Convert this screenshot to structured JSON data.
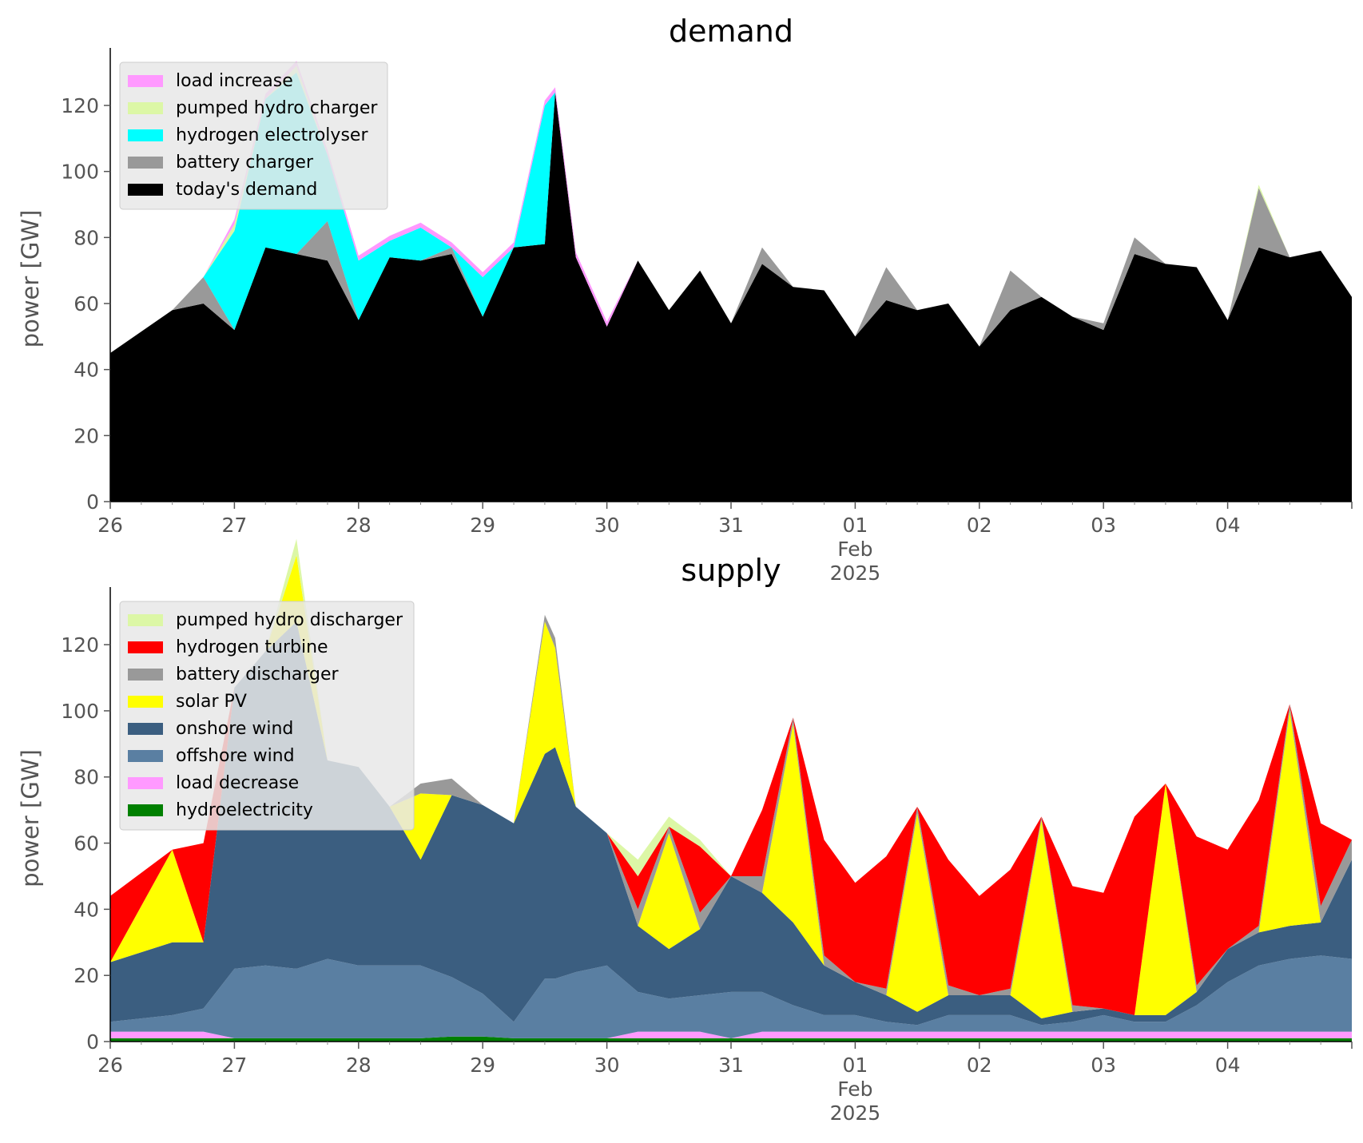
{
  "chart_data": [
    {
      "type": "area",
      "title": "demand",
      "ylabel": "power [GW]",
      "xlabel": "",
      "ylim": [
        0,
        135
      ],
      "yticks": [
        0,
        20,
        40,
        60,
        80,
        100,
        120
      ],
      "x_range": [
        "2025-01-26T00:00",
        "2025-02-05T00:00"
      ],
      "x": [
        "2025-01-26T00:00",
        "2025-01-26T12:00",
        "2025-01-26T18:00",
        "2025-01-27T00:00",
        "2025-01-27T06:00",
        "2025-01-27T12:00",
        "2025-01-27T18:00",
        "2025-01-28T00:00",
        "2025-01-28T06:00",
        "2025-01-28T12:00",
        "2025-01-28T18:00",
        "2025-01-29T00:00",
        "2025-01-29T06:00",
        "2025-01-29T12:00",
        "2025-01-29T14:00",
        "2025-01-29T18:00",
        "2025-01-30T00:00",
        "2025-01-30T06:00",
        "2025-01-30T12:00",
        "2025-01-30T18:00",
        "2025-01-31T00:00",
        "2025-01-31T06:00",
        "2025-01-31T12:00",
        "2025-01-31T18:00",
        "2025-02-01T00:00",
        "2025-02-01T06:00",
        "2025-02-01T12:00",
        "2025-02-01T18:00",
        "2025-02-02T00:00",
        "2025-02-02T06:00",
        "2025-02-02T12:00",
        "2025-02-02T18:00",
        "2025-02-03T00:00",
        "2025-02-03T06:00",
        "2025-02-03T12:00",
        "2025-02-03T18:00",
        "2025-02-04T00:00",
        "2025-02-04T06:00",
        "2025-02-04T12:00",
        "2025-02-04T18:00",
        "2025-02-05T00:00"
      ],
      "x_tick_labels": [
        "26",
        "27",
        "28",
        "29",
        "30",
        "31",
        "01",
        "02",
        "03",
        "04"
      ],
      "x_tick_sublabels": {
        "month": "Feb",
        "year": "2025"
      },
      "legend": "upper-left",
      "series": [
        {
          "name": "today's demand",
          "color": "#000000",
          "values": [
            45,
            58,
            60,
            52,
            77,
            75,
            73,
            55,
            74,
            73,
            75,
            56,
            77,
            78,
            124,
            74,
            53,
            73,
            58,
            70,
            54,
            72,
            65,
            64,
            50,
            61,
            58,
            60,
            47,
            58,
            62,
            56,
            52,
            75,
            72,
            71,
            55,
            77,
            74,
            76,
            62
          ]
        },
        {
          "name": "battery charger",
          "color": "#999999",
          "values": [
            0,
            0,
            8,
            0,
            0,
            0,
            12,
            0,
            0,
            0,
            2,
            0,
            0,
            0,
            0,
            0,
            0,
            0,
            0,
            0,
            0,
            5,
            0,
            0,
            0,
            10,
            0,
            0,
            0,
            12,
            0,
            0,
            2,
            5,
            0,
            0,
            0,
            18,
            0,
            0,
            0
          ]
        },
        {
          "name": "hydrogen electrolyser",
          "color": "#00ffff",
          "values": [
            0,
            0,
            0,
            30,
            45,
            55,
            20,
            18,
            5,
            10,
            0,
            12,
            0,
            42,
            0,
            0,
            0,
            0,
            0,
            0,
            0,
            0,
            0,
            0,
            0,
            0,
            0,
            0,
            0,
            0,
            0,
            0,
            0,
            0,
            0,
            0,
            0,
            0,
            0,
            0,
            0
          ]
        },
        {
          "name": "pumped hydro charger",
          "color": "#dcf7a6",
          "values": [
            0,
            0,
            0,
            2,
            0,
            2,
            0,
            0,
            0,
            0,
            0,
            0,
            0,
            0,
            0,
            0,
            0,
            0,
            0,
            0,
            0,
            0,
            0,
            0,
            0,
            0,
            0,
            0,
            0,
            0,
            0,
            0,
            0,
            0,
            0,
            0,
            0,
            1,
            0,
            0,
            0
          ]
        },
        {
          "name": "load increase",
          "color": "#ff99ff",
          "values": [
            0,
            0,
            0,
            1.5,
            1.5,
            1.5,
            1.5,
            1.5,
            1.5,
            1.5,
            1.5,
            1.5,
            1.5,
            1.5,
            1.5,
            1.5,
            1.5,
            0,
            0,
            0,
            0,
            0,
            0,
            0,
            0,
            0,
            0,
            0,
            0,
            0,
            0,
            0,
            0,
            0,
            0,
            0,
            0,
            0,
            0,
            0,
            0
          ]
        }
      ]
    },
    {
      "type": "area",
      "title": "supply",
      "ylabel": "power [GW]",
      "xlabel": "",
      "ylim": [
        0,
        135
      ],
      "yticks": [
        0,
        20,
        40,
        60,
        80,
        100,
        120
      ],
      "x_range": [
        "2025-01-26T00:00",
        "2025-02-05T00:00"
      ],
      "x": [
        "2025-01-26T00:00",
        "2025-01-26T12:00",
        "2025-01-26T18:00",
        "2025-01-27T00:00",
        "2025-01-27T06:00",
        "2025-01-27T12:00",
        "2025-01-27T18:00",
        "2025-01-28T00:00",
        "2025-01-28T06:00",
        "2025-01-28T12:00",
        "2025-01-28T18:00",
        "2025-01-29T00:00",
        "2025-01-29T06:00",
        "2025-01-29T12:00",
        "2025-01-29T14:00",
        "2025-01-29T18:00",
        "2025-01-30T00:00",
        "2025-01-30T06:00",
        "2025-01-30T12:00",
        "2025-01-30T18:00",
        "2025-01-31T00:00",
        "2025-01-31T06:00",
        "2025-01-31T12:00",
        "2025-01-31T18:00",
        "2025-02-01T00:00",
        "2025-02-01T06:00",
        "2025-02-01T12:00",
        "2025-02-01T18:00",
        "2025-02-02T00:00",
        "2025-02-02T06:00",
        "2025-02-02T12:00",
        "2025-02-02T18:00",
        "2025-02-03T00:00",
        "2025-02-03T06:00",
        "2025-02-03T12:00",
        "2025-02-03T18:00",
        "2025-02-04T00:00",
        "2025-02-04T06:00",
        "2025-02-04T12:00",
        "2025-02-04T18:00",
        "2025-02-05T00:00"
      ],
      "x_tick_labels": [
        "26",
        "27",
        "28",
        "29",
        "30",
        "31",
        "01",
        "02",
        "03",
        "04"
      ],
      "x_tick_sublabels": {
        "month": "Feb",
        "year": "2025"
      },
      "legend": "upper-left",
      "series": [
        {
          "name": "hydroelectricity",
          "color": "#008000",
          "values": [
            1,
            1,
            1,
            1,
            1,
            1,
            1,
            1,
            1,
            1,
            1.5,
            1.5,
            1,
            1,
            1,
            1,
            1,
            1,
            1,
            1,
            1,
            1,
            1,
            1,
            1,
            1,
            1,
            1,
            1,
            1,
            1,
            1,
            1,
            1,
            1,
            1,
            1,
            1,
            1,
            1,
            1
          ]
        },
        {
          "name": "load decrease",
          "color": "#ff99ff",
          "values": [
            2,
            2,
            2,
            0,
            0,
            0,
            0,
            0,
            0,
            0,
            0,
            0,
            0,
            0,
            0,
            0,
            0,
            2,
            2,
            2,
            0,
            2,
            2,
            2,
            2,
            2,
            2,
            2,
            2,
            2,
            2,
            2,
            2,
            2,
            2,
            2,
            2,
            2,
            2,
            2,
            2
          ]
        },
        {
          "name": "offshore wind",
          "color": "#5a7fa2",
          "values": [
            3,
            5,
            7,
            21,
            22,
            21,
            24,
            22,
            22,
            22,
            18,
            13,
            5,
            18,
            18,
            20,
            22,
            12,
            10,
            11,
            14,
            12,
            8,
            5,
            5,
            3,
            2,
            5,
            5,
            5,
            2,
            3,
            5,
            3,
            3,
            8,
            15,
            20,
            22,
            23,
            22
          ]
        },
        {
          "name": "onshore wind",
          "color": "#3b5e80",
          "values": [
            18,
            22,
            20,
            85,
            95,
            105,
            60,
            60,
            48,
            32,
            55,
            57,
            60,
            68,
            70,
            50,
            40,
            20,
            15,
            20,
            35,
            30,
            25,
            15,
            10,
            8,
            4,
            6,
            6,
            6,
            2,
            3,
            2,
            2,
            2,
            4,
            10,
            10,
            10,
            10,
            30
          ]
        },
        {
          "name": "solar PV",
          "color": "#ffff00",
          "values": [
            0,
            28,
            0,
            0,
            0,
            20,
            0,
            0,
            0,
            20,
            0,
            0,
            0,
            40,
            30,
            0,
            0,
            0,
            35,
            0,
            0,
            0,
            60,
            0,
            0,
            0,
            60,
            0,
            0,
            0,
            60,
            0,
            0,
            0,
            70,
            0,
            0,
            0,
            65,
            0,
            0
          ]
        },
        {
          "name": "battery discharger",
          "color": "#999999",
          "values": [
            0,
            0,
            0,
            0,
            0,
            0,
            0,
            0,
            0,
            3,
            5,
            0,
            0,
            2,
            3,
            0,
            0,
            5,
            2,
            5,
            0,
            5,
            2,
            3,
            0,
            2,
            2,
            3,
            0,
            2,
            1,
            2,
            0,
            0,
            0,
            2,
            0,
            2,
            2,
            5,
            6
          ]
        },
        {
          "name": "hydrogen turbine",
          "color": "#ff0000",
          "values": [
            20,
            0,
            30,
            0,
            0,
            0,
            0,
            0,
            0,
            0,
            0,
            0,
            0,
            0,
            0,
            0,
            0,
            10,
            0,
            20,
            0,
            20,
            0,
            35,
            30,
            40,
            0,
            38,
            30,
            36,
            0,
            36,
            35,
            60,
            0,
            45,
            30,
            38,
            0,
            25,
            0
          ]
        },
        {
          "name": "pumped hydro discharger",
          "color": "#dcf7a6",
          "values": [
            0,
            0,
            0,
            0,
            0,
            5,
            0,
            0,
            0,
            0,
            0,
            0,
            0,
            0,
            0,
            0,
            0,
            5,
            3,
            2,
            0,
            0,
            0,
            0,
            0,
            0,
            0,
            0,
            0,
            0,
            0,
            0,
            0,
            0,
            0,
            0,
            0,
            0,
            0,
            0,
            0
          ]
        }
      ]
    }
  ]
}
